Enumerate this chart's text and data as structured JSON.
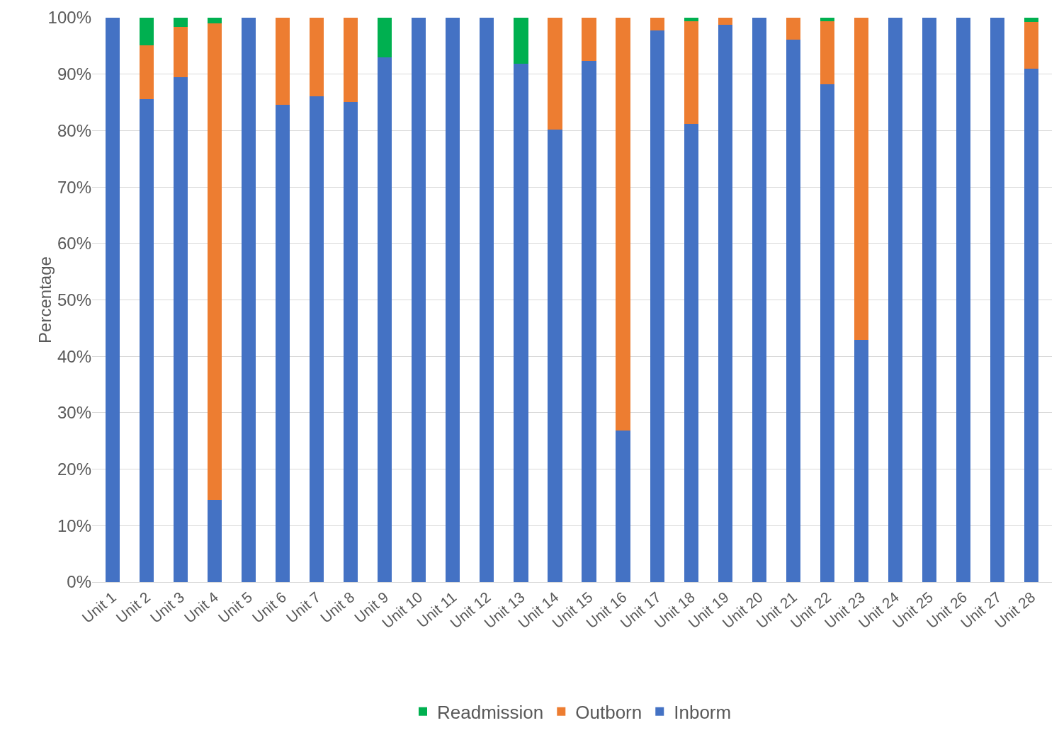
{
  "chart_data": {
    "type": "bar",
    "stacked": true,
    "ylabel": "Percentage",
    "categories": [
      "Unit 1",
      "Unit 2",
      "Unit 3",
      "Unit 4",
      "Unit 5",
      "Unit 6",
      "Unit 7",
      "Unit 8",
      "Unit 9",
      "Unit 10",
      "Unit 11",
      "Unit 12",
      "Unit 13",
      "Unit 14",
      "Unit 15",
      "Unit 16",
      "Unit 17",
      "Unit 18",
      "Unit 19",
      "Unit 20",
      "Unit 21",
      "Unit 22",
      "Unit 23",
      "Unit 24",
      "Unit 25",
      "Unit 26",
      "Unit 27",
      "Unit 28"
    ],
    "series": [
      {
        "name": "Inborm",
        "color": "#4472c4",
        "values": [
          100,
          85.6,
          89.5,
          14.6,
          100,
          84.6,
          86.1,
          85.1,
          93.0,
          100,
          100,
          100,
          91.8,
          80.2,
          92.3,
          26.9,
          97.8,
          81.2,
          98.8,
          100,
          96.1,
          88.2,
          42.9,
          100,
          100,
          100,
          100,
          91.0
        ]
      },
      {
        "name": "Outborn",
        "color": "#ed7d31",
        "values": [
          0,
          9.5,
          8.9,
          84.4,
          0,
          15.4,
          13.9,
          14.9,
          0,
          0,
          0,
          0,
          0,
          19.8,
          7.7,
          73.1,
          2.2,
          18.2,
          1.2,
          0,
          3.9,
          11.2,
          57.1,
          0,
          0,
          0,
          0,
          8.3
        ]
      },
      {
        "name": "Readmission",
        "color": "#00b050",
        "values": [
          0,
          4.9,
          1.6,
          1.0,
          0,
          0,
          0,
          0,
          7.0,
          0,
          0,
          0,
          8.2,
          0,
          0,
          0,
          0,
          0.6,
          0,
          0,
          0,
          0.6,
          0,
          0,
          0,
          0,
          0,
          0.7
        ]
      }
    ],
    "ylim": [
      0,
      100
    ],
    "yticks": [
      {
        "value": 0,
        "label": "0%"
      },
      {
        "value": 10,
        "label": "10%"
      },
      {
        "value": 20,
        "label": "20%"
      },
      {
        "value": 30,
        "label": "30%"
      },
      {
        "value": 40,
        "label": "40%"
      },
      {
        "value": 50,
        "label": "50%"
      },
      {
        "value": 60,
        "label": "60%"
      },
      {
        "value": 70,
        "label": "70%"
      },
      {
        "value": 80,
        "label": "80%"
      },
      {
        "value": 90,
        "label": "90%"
      },
      {
        "value": 100,
        "label": "100%"
      }
    ],
    "grid": "y",
    "legend": "bottom"
  }
}
